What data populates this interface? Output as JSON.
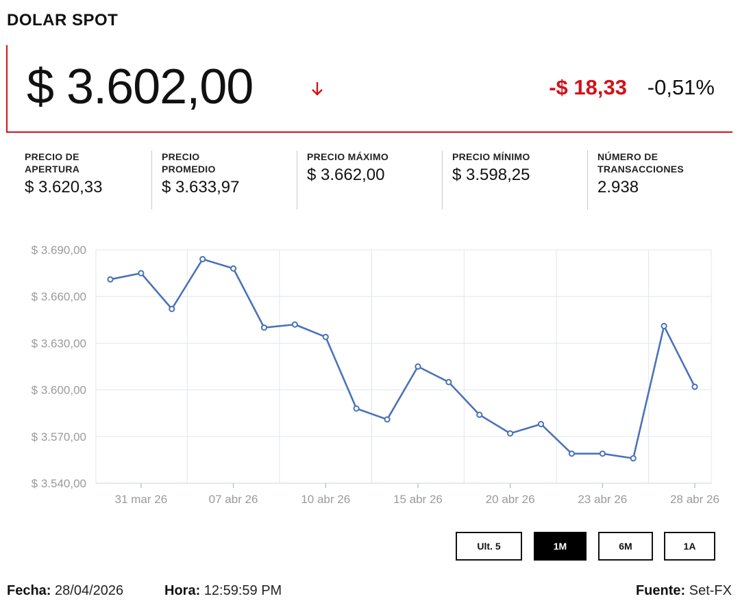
{
  "header": {
    "title": "DOLAR SPOT"
  },
  "quote": {
    "price": "$ 3.602,00",
    "change_abs": "-$ 18,33",
    "change_pct": "-0,51%",
    "direction_icon": "arrow-down-icon",
    "down_color": "#d0121b"
  },
  "stats": [
    {
      "label": "PRECIO DE\nAPERTURA",
      "value": "$ 3.620,33"
    },
    {
      "label": "PRECIO\nPROMEDIO",
      "value": "$ 3.633,97"
    },
    {
      "label": "PRECIO MÁXIMO",
      "value": "$ 3.662,00"
    },
    {
      "label": "PRECIO MÍNIMO",
      "value": "$ 3.598,25"
    },
    {
      "label": "NÚMERO DE\nTRANSACCIONES",
      "value": "2.938"
    }
  ],
  "chart_data": {
    "type": "line",
    "x": [
      "30 mar 26",
      "31 mar 26",
      "01 abr 26",
      "06 abr 26",
      "07 abr 26",
      "08 abr 26",
      "09 abr 26",
      "10 abr 26",
      "13 abr 26",
      "14 abr 26",
      "15 abr 26",
      "16 abr 26",
      "17 abr 26",
      "20 abr 26",
      "21 abr 26",
      "22 abr 26",
      "23 abr 26",
      "24 abr 26",
      "27 abr 26",
      "28 abr 26"
    ],
    "series": [
      {
        "values": [
          3671,
          3675,
          3652,
          3684,
          3678,
          3640,
          3642,
          3634,
          3588,
          3581,
          3615,
          3605,
          3584,
          3572,
          3578,
          3559,
          3559,
          3556,
          3641,
          3602
        ]
      }
    ],
    "y_ticks": [
      "$ 3.690,00",
      "$ 3.660,00",
      "$ 3.630,00",
      "$ 3.600,00",
      "$ 3.570,00",
      "$ 3.540,00"
    ],
    "x_ticks": [
      "31 mar 26",
      "07 abr 26",
      "10 abr 26",
      "15 abr 26",
      "20 abr 26",
      "23 abr 26",
      "28 abr 26"
    ],
    "ylim": [
      3540,
      3690
    ],
    "grid": true,
    "line_color": "#4a72b8"
  },
  "ranges": [
    {
      "label": "Ult. 5",
      "active": false
    },
    {
      "label": "1M",
      "active": true
    },
    {
      "label": "6M",
      "active": false
    },
    {
      "label": "1A",
      "active": false
    }
  ],
  "footer": {
    "date_label": "Fecha:",
    "date_value": "28/04/2026",
    "time_label": "Hora:",
    "time_value": "12:59:59 PM",
    "source_label": "Fuente:",
    "source_value": "Set-FX"
  }
}
